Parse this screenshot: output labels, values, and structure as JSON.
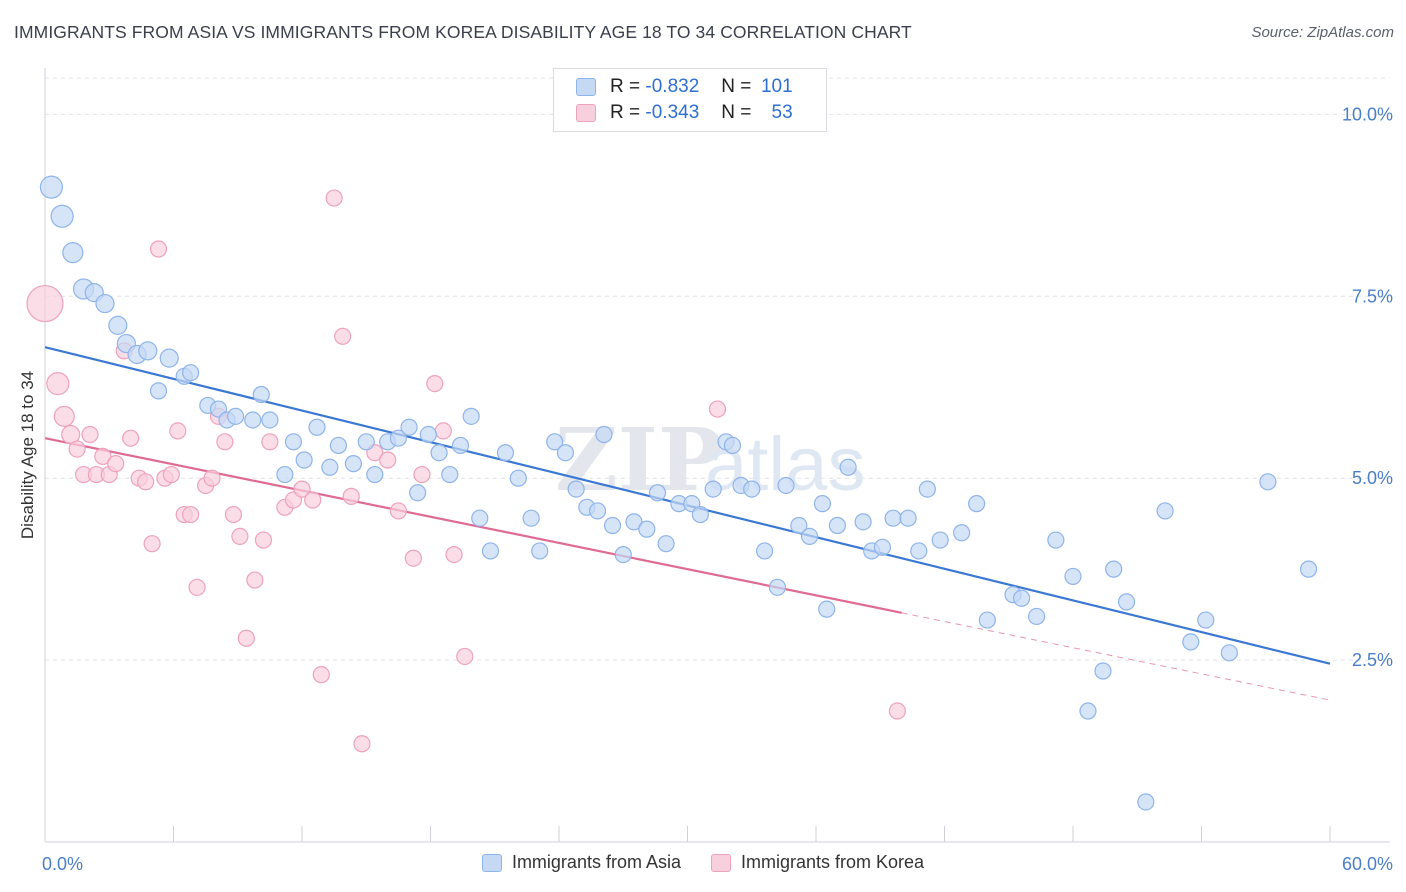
{
  "title": "IMMIGRANTS FROM ASIA VS IMMIGRANTS FROM KOREA DISABILITY AGE 18 TO 34 CORRELATION CHART",
  "source": "Source: ZipAtlas.com",
  "watermark": "ZIPatlas",
  "legend": {
    "rows": [
      {
        "r_label": "R =",
        "r_value": "-0.832",
        "n_label": "N =",
        "n_value": "101",
        "color": "#8fb4ea",
        "fill": "#c5d9f5"
      },
      {
        "r_label": "R =",
        "r_value": "-0.343",
        "n_label": "N =",
        "n_value": "53",
        "color": "#eea2bb",
        "fill": "#f8cfdc"
      }
    ]
  },
  "chart_data": {
    "type": "scatter",
    "xlabel": "",
    "ylabel": "Disability Age 18 to 34",
    "xlim": [
      0,
      60
    ],
    "ylim": [
      0,
      10.5
    ],
    "x_tick_labels": [
      {
        "value": 0,
        "label": "0.0%"
      },
      {
        "value": 60,
        "label": "60.0%"
      }
    ],
    "y_tick_labels": [
      {
        "value": 2.5,
        "label": "2.5%"
      },
      {
        "value": 5.0,
        "label": "5.0%"
      },
      {
        "value": 7.5,
        "label": "7.5%"
      },
      {
        "value": 10.0,
        "label": "10.0%"
      }
    ],
    "grid": true,
    "legend_position": "top-center",
    "series": [
      {
        "name": "Immigrants from Asia",
        "color": "#3b78d4",
        "marker_fill": "#c5d9f5",
        "marker_stroke": "#8fb4ea",
        "trend": {
          "x": [
            0,
            60
          ],
          "y": [
            6.8,
            2.45
          ]
        },
        "points": [
          [
            0.3,
            9.0,
            11
          ],
          [
            0.8,
            8.6,
            11
          ],
          [
            1.3,
            8.1,
            10
          ],
          [
            1.8,
            7.6,
            10
          ],
          [
            2.3,
            7.55,
            9
          ],
          [
            2.8,
            7.4,
            9
          ],
          [
            3.4,
            7.1,
            9
          ],
          [
            3.8,
            6.85,
            9
          ],
          [
            4.3,
            6.7,
            9
          ],
          [
            4.8,
            6.75,
            9
          ],
          [
            5.8,
            6.65,
            9
          ],
          [
            6.5,
            6.4,
            8
          ],
          [
            6.8,
            6.45,
            8
          ],
          [
            5.3,
            6.2,
            8
          ],
          [
            7.6,
            6.0,
            8
          ],
          [
            8.1,
            5.95,
            8
          ],
          [
            8.5,
            5.8,
            8
          ],
          [
            8.9,
            5.85,
            8
          ],
          [
            9.7,
            5.8,
            8
          ],
          [
            10.1,
            6.15,
            8
          ],
          [
            10.5,
            5.8,
            8
          ],
          [
            11.2,
            5.05,
            8
          ],
          [
            11.6,
            5.5,
            8
          ],
          [
            12.1,
            5.25,
            8
          ],
          [
            12.7,
            5.7,
            8
          ],
          [
            13.3,
            5.15,
            8
          ],
          [
            13.7,
            5.45,
            8
          ],
          [
            14.4,
            5.2,
            8
          ],
          [
            15.0,
            5.5,
            8
          ],
          [
            15.4,
            5.05,
            8
          ],
          [
            16.0,
            5.5,
            8
          ],
          [
            16.5,
            5.55,
            8
          ],
          [
            17.0,
            5.7,
            8
          ],
          [
            17.4,
            4.8,
            8
          ],
          [
            17.9,
            5.6,
            8
          ],
          [
            18.4,
            5.35,
            8
          ],
          [
            18.9,
            5.05,
            8
          ],
          [
            19.4,
            5.45,
            8
          ],
          [
            19.9,
            5.85,
            8
          ],
          [
            20.3,
            4.45,
            8
          ],
          [
            20.8,
            4.0,
            8
          ],
          [
            21.5,
            5.35,
            8
          ],
          [
            22.1,
            5.0,
            8
          ],
          [
            22.7,
            4.45,
            8
          ],
          [
            23.1,
            4.0,
            8
          ],
          [
            23.8,
            5.5,
            8
          ],
          [
            24.3,
            5.35,
            8
          ],
          [
            24.8,
            4.85,
            8
          ],
          [
            25.3,
            4.6,
            8
          ],
          [
            25.8,
            4.55,
            8
          ],
          [
            26.1,
            5.6,
            8
          ],
          [
            26.5,
            4.35,
            8
          ],
          [
            27.0,
            3.95,
            8
          ],
          [
            27.5,
            4.4,
            8
          ],
          [
            28.1,
            4.3,
            8
          ],
          [
            28.6,
            4.8,
            8
          ],
          [
            29.0,
            4.1,
            8
          ],
          [
            29.6,
            4.65,
            8
          ],
          [
            30.2,
            4.65,
            8
          ],
          [
            30.6,
            4.5,
            8
          ],
          [
            31.2,
            4.85,
            8
          ],
          [
            31.8,
            5.5,
            8
          ],
          [
            32.1,
            5.45,
            8
          ],
          [
            32.5,
            4.9,
            8
          ],
          [
            33.0,
            4.85,
            8
          ],
          [
            33.6,
            4.0,
            8
          ],
          [
            34.2,
            3.5,
            8
          ],
          [
            34.6,
            4.9,
            8
          ],
          [
            35.2,
            4.35,
            8
          ],
          [
            35.7,
            4.2,
            8
          ],
          [
            36.3,
            4.65,
            8
          ],
          [
            36.5,
            3.2,
            8
          ],
          [
            37.0,
            4.35,
            8
          ],
          [
            37.5,
            5.15,
            8
          ],
          [
            38.2,
            4.4,
            8
          ],
          [
            38.6,
            4.0,
            8
          ],
          [
            39.1,
            4.05,
            8
          ],
          [
            39.6,
            4.45,
            8
          ],
          [
            40.3,
            4.45,
            8
          ],
          [
            40.8,
            4.0,
            8
          ],
          [
            41.2,
            4.85,
            8
          ],
          [
            41.8,
            4.15,
            8
          ],
          [
            42.8,
            4.25,
            8
          ],
          [
            43.5,
            4.65,
            8
          ],
          [
            44.0,
            3.05,
            8
          ],
          [
            45.2,
            3.4,
            8
          ],
          [
            45.6,
            3.35,
            8
          ],
          [
            46.3,
            3.1,
            8
          ],
          [
            47.2,
            4.15,
            8
          ],
          [
            48.0,
            3.65,
            8
          ],
          [
            48.7,
            1.8,
            8
          ],
          [
            49.4,
            2.35,
            8
          ],
          [
            49.9,
            3.75,
            8
          ],
          [
            50.5,
            3.3,
            8
          ],
          [
            51.4,
            0.55,
            8
          ],
          [
            52.3,
            4.55,
            8
          ],
          [
            53.5,
            2.75,
            8
          ],
          [
            54.2,
            3.05,
            8
          ],
          [
            55.3,
            2.6,
            8
          ],
          [
            57.1,
            4.95,
            8
          ],
          [
            59.0,
            3.75,
            8
          ]
        ]
      },
      {
        "name": "Immigrants from Korea",
        "color": "#df6b93",
        "marker_fill": "#f8cfdc",
        "marker_stroke": "#eea2bb",
        "trend": {
          "x": [
            0,
            40
          ],
          "y": [
            5.55,
            3.15
          ]
        },
        "trend_dashed": {
          "x": [
            40,
            60
          ],
          "y": [
            3.15,
            1.95
          ]
        },
        "points": [
          [
            0.0,
            7.4,
            18
          ],
          [
            0.6,
            6.3,
            11
          ],
          [
            0.9,
            5.85,
            10
          ],
          [
            1.2,
            5.6,
            9
          ],
          [
            1.5,
            5.4,
            8
          ],
          [
            1.8,
            5.05,
            8
          ],
          [
            2.1,
            5.6,
            8
          ],
          [
            2.4,
            5.05,
            8
          ],
          [
            2.7,
            5.3,
            8
          ],
          [
            3.0,
            5.05,
            8
          ],
          [
            3.3,
            5.2,
            8
          ],
          [
            3.7,
            6.75,
            8
          ],
          [
            4.0,
            5.55,
            8
          ],
          [
            4.4,
            5.0,
            8
          ],
          [
            4.7,
            4.95,
            8
          ],
          [
            5.0,
            4.1,
            8
          ],
          [
            5.3,
            8.15,
            8
          ],
          [
            5.6,
            5.0,
            8
          ],
          [
            5.9,
            5.05,
            8
          ],
          [
            6.2,
            5.65,
            8
          ],
          [
            6.5,
            4.5,
            8
          ],
          [
            6.8,
            4.5,
            8
          ],
          [
            7.1,
            3.5,
            8
          ],
          [
            7.5,
            4.9,
            8
          ],
          [
            7.8,
            5.0,
            8
          ],
          [
            8.1,
            5.85,
            8
          ],
          [
            8.4,
            5.5,
            8
          ],
          [
            8.8,
            4.5,
            8
          ],
          [
            9.1,
            4.2,
            8
          ],
          [
            9.4,
            2.8,
            8
          ],
          [
            9.8,
            3.6,
            8
          ],
          [
            10.2,
            4.15,
            8
          ],
          [
            10.5,
            5.5,
            8
          ],
          [
            11.2,
            4.6,
            8
          ],
          [
            11.6,
            4.7,
            8
          ],
          [
            12.0,
            4.85,
            8
          ],
          [
            12.5,
            4.7,
            8
          ],
          [
            12.9,
            2.3,
            8
          ],
          [
            13.5,
            8.85,
            8
          ],
          [
            13.9,
            6.95,
            8
          ],
          [
            14.3,
            4.75,
            8
          ],
          [
            14.8,
            1.35,
            8
          ],
          [
            15.4,
            5.35,
            8
          ],
          [
            16.0,
            5.25,
            8
          ],
          [
            16.5,
            4.55,
            8
          ],
          [
            17.2,
            3.9,
            8
          ],
          [
            17.6,
            5.05,
            8
          ],
          [
            18.2,
            6.3,
            8
          ],
          [
            18.6,
            5.65,
            8
          ],
          [
            19.1,
            3.95,
            8
          ],
          [
            19.6,
            2.55,
            8
          ],
          [
            31.4,
            5.95,
            8
          ],
          [
            39.8,
            1.8,
            8
          ]
        ]
      }
    ]
  },
  "bottom_legend": [
    {
      "label": "Immigrants from Asia",
      "fill": "#c5d9f5",
      "stroke": "#8fb4ea"
    },
    {
      "label": "Immigrants from Korea",
      "fill": "#f8cfdc",
      "stroke": "#eea2bb"
    }
  ]
}
